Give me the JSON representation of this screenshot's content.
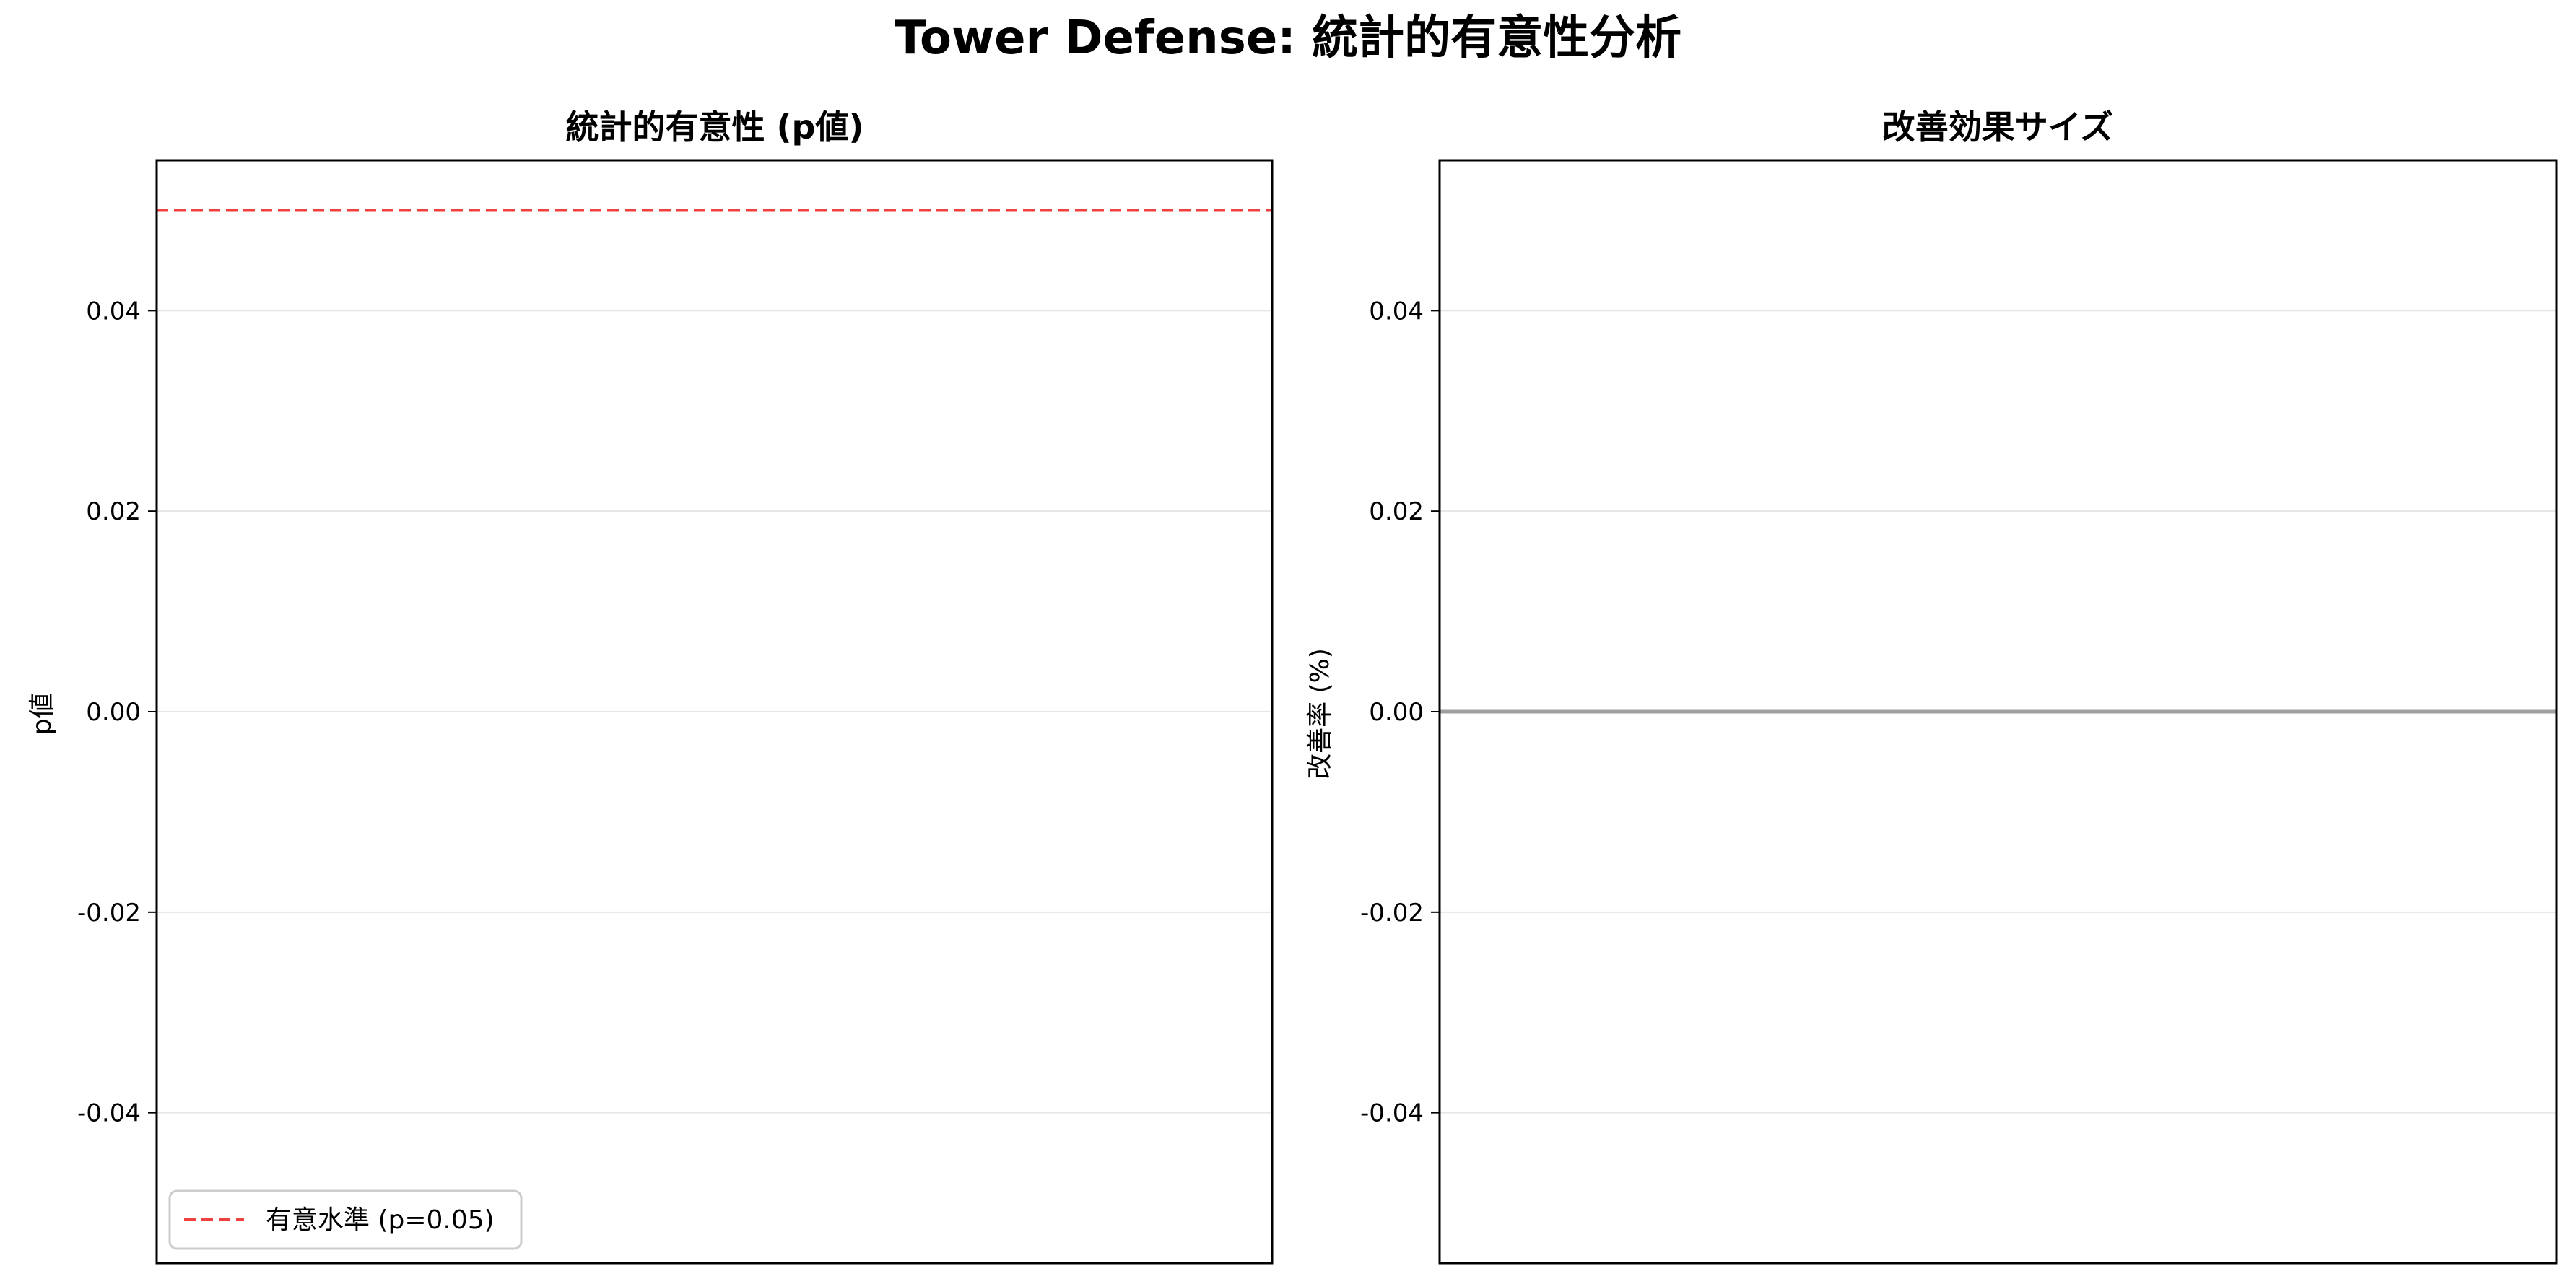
{
  "figure": {
    "suptitle": "Tower Defense: 統計的有意性分析"
  },
  "colors": {
    "significance_line": "#f04040",
    "zero_line": "#a0a0a0",
    "grid": "#e6e6e6",
    "axis": "#000000",
    "background": "#ffffff"
  },
  "chart_data": [
    {
      "type": "bar",
      "title": "統計的有意性 (p値)",
      "xlabel": "",
      "ylabel": "p値",
      "categories": [],
      "series": [],
      "ylim": [
        -0.055,
        0.055
      ],
      "yticks": [
        0.04,
        0.02,
        0.0,
        -0.02,
        -0.04
      ],
      "ytick_labels": [
        "0.04",
        "0.02",
        "0.00",
        "-0.02",
        "-0.04"
      ],
      "grid": "y",
      "reference_lines": [
        {
          "y": 0.05,
          "style": "dashed",
          "color": "#f04040",
          "label": "有意水準 (p=0.05)"
        }
      ],
      "legend": {
        "placement": "lower-left",
        "entries": [
          "有意水準 (p=0.05)"
        ]
      }
    },
    {
      "type": "bar",
      "title": "改善効果サイズ",
      "xlabel": "",
      "ylabel": "改善率 (%)",
      "categories": [],
      "series": [],
      "ylim": [
        -0.055,
        0.055
      ],
      "yticks": [
        0.04,
        0.02,
        0.0,
        -0.02,
        -0.04
      ],
      "ytick_labels": [
        "0.04",
        "0.02",
        "0.00",
        "-0.02",
        "-0.04"
      ],
      "grid": "y",
      "reference_lines": [
        {
          "y": 0.0,
          "style": "solid",
          "color": "#a0a0a0",
          "label": ""
        }
      ]
    }
  ]
}
